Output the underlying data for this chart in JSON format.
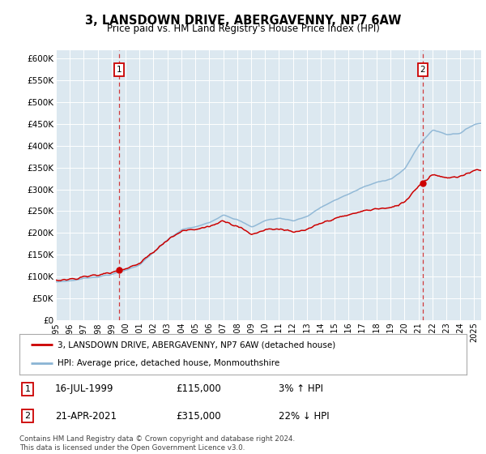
{
  "title": "3, LANSDOWN DRIVE, ABERGAVENNY, NP7 6AW",
  "subtitle": "Price paid vs. HM Land Registry's House Price Index (HPI)",
  "hpi_label": "HPI: Average price, detached house, Monmouthshire",
  "property_label": "3, LANSDOWN DRIVE, ABERGAVENNY, NP7 6AW (detached house)",
  "sale1_date": "16-JUL-1999",
  "sale1_price": 115000,
  "sale1_pct": "3% ↑ HPI",
  "sale2_date": "21-APR-2021",
  "sale2_price": 315000,
  "sale2_pct": "22% ↓ HPI",
  "sale1_year": 1999.54,
  "sale2_year": 2021.31,
  "hpi_color": "#8ab4d4",
  "property_color": "#cc0000",
  "marker_color": "#cc0000",
  "plot_bg_color": "#dce8f0",
  "fig_bg_color": "#ffffff",
  "grid_color": "#ffffff",
  "vline_color": "#cc0000",
  "ylim": [
    0,
    620000
  ],
  "xlim_start": 1995.0,
  "xlim_end": 2025.5,
  "footer": "Contains HM Land Registry data © Crown copyright and database right 2024.\nThis data is licensed under the Open Government Licence v3.0.",
  "yticks": [
    0,
    50000,
    100000,
    150000,
    200000,
    250000,
    300000,
    350000,
    400000,
    450000,
    500000,
    550000,
    600000
  ],
  "ytick_labels": [
    "£0",
    "£50K",
    "£100K",
    "£150K",
    "£200K",
    "£250K",
    "£300K",
    "£350K",
    "£400K",
    "£450K",
    "£500K",
    "£550K",
    "£600K"
  ]
}
